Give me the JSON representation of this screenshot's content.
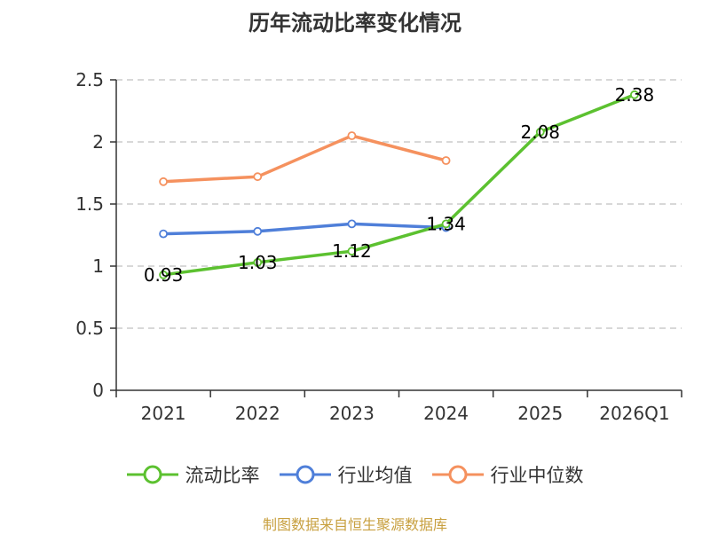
{
  "chart_data": {
    "type": "line",
    "title": "历年流动比率变化情况",
    "categories": [
      "2021",
      "2022",
      "2023",
      "2024",
      "2025",
      "2026Q1"
    ],
    "ylim": [
      0,
      2.5
    ],
    "yticks": [
      0,
      0.5,
      1,
      1.5,
      2,
      2.5
    ],
    "ytick_labels": [
      "0",
      "0.5",
      "1",
      "1.5",
      "2",
      "2.5"
    ],
    "grid": true,
    "legend_position": "bottom",
    "series": [
      {
        "name": "流动比率",
        "color": "#5cc130",
        "values": [
          0.93,
          1.03,
          1.12,
          1.34,
          2.08,
          2.38
        ],
        "labels": [
          "0.93",
          "1.03",
          "1.12",
          "1.34",
          "2.08",
          "2.38"
        ]
      },
      {
        "name": "行业均值",
        "color": "#4f7fd9",
        "values": [
          1.26,
          1.28,
          1.34,
          1.31,
          null,
          null
        ]
      },
      {
        "name": "行业中位数",
        "color": "#f5915e",
        "values": [
          1.68,
          1.72,
          2.05,
          1.85,
          null,
          null
        ]
      }
    ]
  },
  "footer": {
    "source": "制图数据来自恒生聚源数据库"
  }
}
